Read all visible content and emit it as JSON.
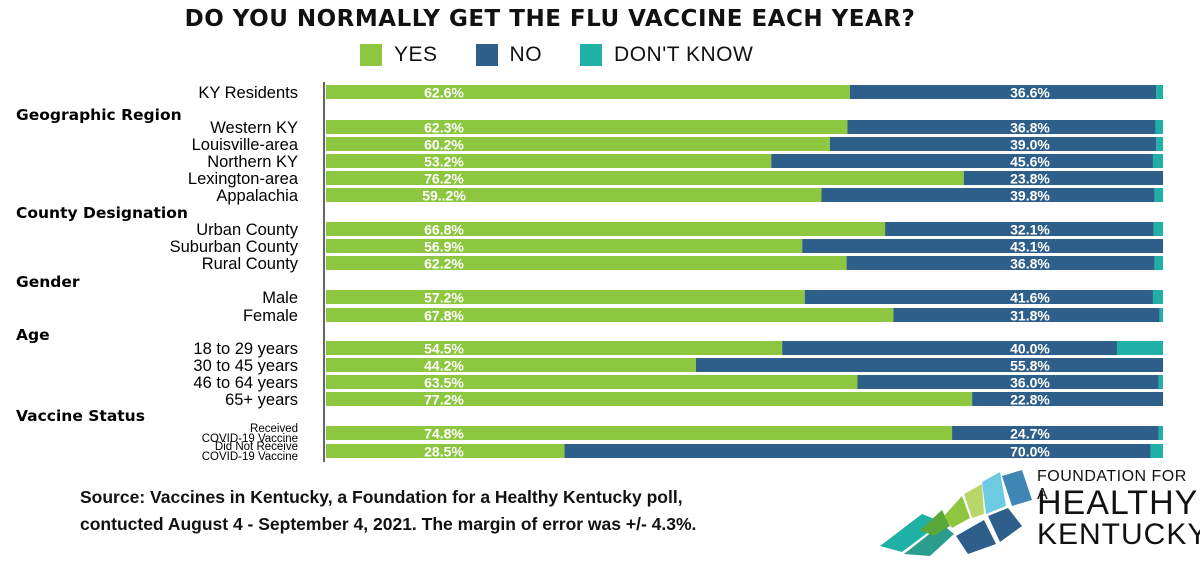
{
  "title": "DO YOU NORMALLY GET THE FLU VACCINE EACH YEAR?",
  "colors": {
    "yes": "#8dc63f",
    "no": "#2d5f8a",
    "dont_know": "#1fb0a6"
  },
  "chart_data": {
    "type": "bar",
    "orientation": "horizontal",
    "stacked": true,
    "title": "DO YOU NORMALLY GET THE FLU VACCINE EACH YEAR?",
    "legend": [
      "YES",
      "NO",
      "DON'T KNOW"
    ],
    "legend_position": "top",
    "xlim": [
      0,
      100
    ],
    "groups": [
      {
        "heading": "",
        "rows": [
          {
            "label": "KY Residents",
            "yes": 62.6,
            "no": 36.6,
            "dk": 0.8,
            "yes_text": "62.6%",
            "no_text": "36.6%"
          }
        ]
      },
      {
        "heading": "Geographic Region",
        "rows": [
          {
            "label": "Western KY",
            "yes": 62.3,
            "no": 36.8,
            "dk": 0.9,
            "yes_text": "62.3%",
            "no_text": "36.8%"
          },
          {
            "label": "Louisville-area",
            "yes": 60.2,
            "no": 39.0,
            "dk": 0.8,
            "yes_text": "60.2%",
            "no_text": "39.0%"
          },
          {
            "label": "Northern KY",
            "yes": 53.2,
            "no": 45.6,
            "dk": 1.2,
            "yes_text": "53.2%",
            "no_text": "45.6%"
          },
          {
            "label": "Lexington-area",
            "yes": 76.2,
            "no": 23.8,
            "dk": 0.0,
            "yes_text": "76.2%",
            "no_text": "23.8%"
          },
          {
            "label": "Appalachia",
            "yes": 59.2,
            "no": 39.8,
            "dk": 1.0,
            "yes_text": "59..2%",
            "no_text": "39.8%"
          }
        ]
      },
      {
        "heading": "County Designation",
        "rows": [
          {
            "label": "Urban County",
            "yes": 66.8,
            "no": 32.1,
            "dk": 1.1,
            "yes_text": "66.8%",
            "no_text": "32.1%"
          },
          {
            "label": "Suburban County",
            "yes": 56.9,
            "no": 43.1,
            "dk": 0.0,
            "yes_text": "56.9%",
            "no_text": "43.1%"
          },
          {
            "label": "Rural County",
            "yes": 62.2,
            "no": 36.8,
            "dk": 1.0,
            "yes_text": "62.2%",
            "no_text": "36.8%"
          }
        ]
      },
      {
        "heading": "Gender",
        "rows": [
          {
            "label": "Male",
            "yes": 57.2,
            "no": 41.6,
            "dk": 1.2,
            "yes_text": "57.2%",
            "no_text": "41.6%"
          },
          {
            "label": "Female",
            "yes": 67.8,
            "no": 31.8,
            "dk": 0.4,
            "yes_text": "67.8%",
            "no_text": "31.8%"
          }
        ]
      },
      {
        "heading": "Age",
        "rows": [
          {
            "label": "18 to 29 years",
            "yes": 54.5,
            "no": 40.0,
            "dk": 5.5,
            "yes_text": "54.5%",
            "no_text": "40.0%"
          },
          {
            "label": "30 to 45 years",
            "yes": 44.2,
            "no": 55.8,
            "dk": 0.0,
            "yes_text": "44.2%",
            "no_text": "55.8%"
          },
          {
            "label": "46 to 64 years",
            "yes": 63.5,
            "no": 36.0,
            "dk": 0.5,
            "yes_text": "63.5%",
            "no_text": "36.0%"
          },
          {
            "label": "65+ years",
            "yes": 77.2,
            "no": 22.8,
            "dk": 0.0,
            "yes_text": "77.2%",
            "no_text": "22.8%"
          }
        ]
      },
      {
        "heading": "Vaccine Status",
        "rows": [
          {
            "label": "Received COVID-19 Vaccine",
            "label_lines": [
              "Received",
              "COVID-19 Vaccine"
            ],
            "yes": 74.8,
            "no": 24.7,
            "dk": 0.5,
            "yes_text": "74.8%",
            "no_text": "24.7%"
          },
          {
            "label": "Did Not Receive COVID-19 Vaccine",
            "label_lines": [
              "Did Not Receive",
              "COVID-19 Vaccine"
            ],
            "yes": 28.5,
            "no": 70.0,
            "dk": 1.5,
            "yes_text": "28.5%",
            "no_text": "70.0%"
          }
        ]
      }
    ]
  },
  "source": {
    "line1": "Source: Vaccines in Kentucky, a Foundation for a Healthy Kentucky poll,",
    "line2": "contucted August 4 - September 4, 2021.  The margin of error was +/- 4.3%."
  },
  "logo": {
    "line1": "FOUNDATION FOR A",
    "line2": "HEALTHY",
    "line3": "KENTUCKY"
  }
}
